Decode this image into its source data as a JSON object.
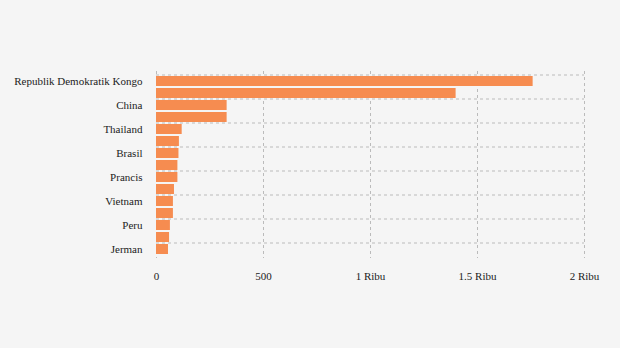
{
  "chart_data": {
    "type": "bar",
    "orientation": "horizontal",
    "categories": [
      "Republik Demokratik Kongo",
      null,
      "China",
      null,
      "Thailand",
      null,
      "Brasil",
      null,
      "Prancis",
      null,
      "Vietnam",
      null,
      "Peru",
      null,
      "Jerman"
    ],
    "values": [
      1760,
      1400,
      330,
      330,
      120,
      107,
      105,
      100,
      100,
      84,
      79,
      79,
      65,
      61,
      56
    ],
    "color": "#f68c50",
    "xlim": [
      0,
      2000
    ],
    "xticks": [
      0,
      500,
      {
        "value": 1000,
        "label": "1 Ribu"
      },
      {
        "value": 1500,
        "label": "1.5 Ribu"
      },
      {
        "value": 2000,
        "label": "2 Ribu"
      }
    ],
    "grid": true
  }
}
